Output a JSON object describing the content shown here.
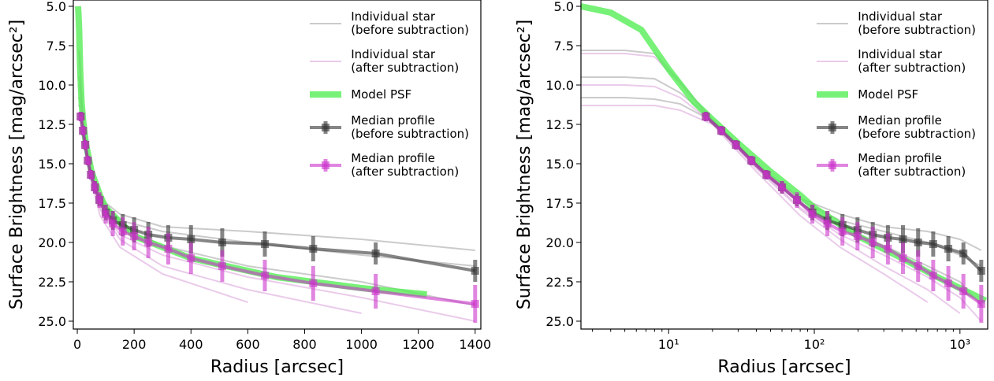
{
  "chart_data": [
    {
      "type": "line",
      "xlabel": "Radius [arcsec]",
      "ylabel": "Surface Brightness [mag/arcsec²]",
      "xlim": [
        -14,
        1420
      ],
      "ylim": [
        25.5,
        4.6
      ],
      "xticks": [
        0,
        200,
        400,
        600,
        800,
        1000,
        1200,
        1400
      ],
      "yticks": [
        {
          "value": 5,
          "label": "5.0"
        },
        7.5,
        {
          "value": 10,
          "label": "10.0"
        },
        12.5,
        {
          "value": 15,
          "label": "15.0"
        },
        17.5,
        {
          "value": 20,
          "label": "20.0"
        },
        22.5,
        {
          "value": 25,
          "label": "25.0"
        }
      ],
      "legend": "upper right",
      "series": [
        {
          "name": "Individual star\n(before subtraction)",
          "color": "#a0a0a0",
          "opacity": 0.55,
          "linewidth": 2,
          "x": [
            2.5,
            5,
            8,
            12,
            20,
            40,
            80,
            150,
            300,
            600,
            1000,
            1400
          ],
          "values": [
            7.8,
            7.8,
            8.0,
            9.8,
            12.2,
            15.0,
            17.3,
            18.6,
            19.3,
            20.0,
            20.8,
            21.5
          ]
        },
        {
          "color": "#a0a0a0",
          "opacity": 0.55,
          "linewidth": 2,
          "x": [
            2.5,
            5,
            8,
            12,
            20,
            40,
            80,
            150,
            300,
            600,
            1000,
            1400
          ],
          "values": [
            9.5,
            9.5,
            9.6,
            10.5,
            12.2,
            15.0,
            17.2,
            18.2,
            19.0,
            19.3,
            19.8,
            20.5
          ]
        },
        {
          "color": "#a0a0a0",
          "opacity": 0.55,
          "linewidth": 2,
          "x": [
            2.5,
            5,
            8,
            12,
            20,
            40,
            80,
            150,
            300,
            600,
            1000,
            1400
          ],
          "values": [
            10.8,
            10.8,
            10.9,
            11.2,
            12.3,
            15.1,
            17.5,
            19.0,
            20.2,
            21.5,
            22.5,
            24.0
          ]
        },
        {
          "name": "Individual star\n(after subtraction)",
          "color": "#d9a0d9",
          "opacity": 0.55,
          "linewidth": 2,
          "x": [
            2.5,
            5,
            8,
            12,
            20,
            40,
            80,
            150,
            300,
            600,
            1000,
            1400
          ],
          "values": [
            8.0,
            8.0,
            8.2,
            9.9,
            12.3,
            15.2,
            17.8,
            19.5,
            20.8,
            22.2,
            23.5,
            25.0
          ]
        },
        {
          "color": "#d9a0d9",
          "opacity": 0.55,
          "linewidth": 2,
          "x": [
            2.5,
            5,
            8,
            12,
            20,
            40,
            80,
            150,
            300,
            600,
            1000,
            1400
          ],
          "values": [
            10.0,
            10.0,
            10.1,
            10.8,
            12.4,
            15.3,
            17.9,
            19.8,
            21.5,
            23.0,
            24.5,
            null
          ]
        },
        {
          "color": "#d9a0d9",
          "opacity": 0.55,
          "linewidth": 2,
          "x": [
            2.5,
            5,
            8,
            12,
            20,
            40,
            80,
            150,
            300,
            600,
            1000,
            1400
          ],
          "values": [
            11.3,
            11.3,
            11.3,
            11.6,
            12.5,
            15.5,
            18.3,
            20.3,
            22.0,
            23.8,
            null,
            null
          ]
        },
        {
          "name": "Model PSF",
          "color": "#55ee55",
          "opacity": 0.8,
          "linewidth": 8,
          "x": [
            2.5,
            4,
            6.5,
            10,
            15,
            20,
            30,
            50,
            80,
            100,
            200,
            400,
            700,
            1000,
            1230
          ],
          "values": [
            5.0,
            5.4,
            6.5,
            9.0,
            11.1,
            12.2,
            13.7,
            15.5,
            17.0,
            17.8,
            19.6,
            21.0,
            22.2,
            22.9,
            23.3
          ]
        },
        {
          "name": "Median profile\n(before subtraction)",
          "color": "#333333",
          "opacity": 0.6,
          "linewidth": 4,
          "x": [
            12,
            20,
            28,
            37,
            48,
            62,
            78,
            100,
            125,
            160,
            200,
            250,
            320,
            400,
            510,
            660,
            830,
            1050,
            1400
          ],
          "values": [
            12.0,
            12.9,
            13.8,
            14.8,
            15.7,
            16.5,
            17.3,
            18.1,
            18.6,
            18.9,
            19.2,
            19.5,
            19.7,
            19.8,
            20.0,
            20.1,
            20.4,
            20.7,
            21.8
          ],
          "errors": [
            0.3,
            0.3,
            0.3,
            0.3,
            0.3,
            0.4,
            0.4,
            0.5,
            0.6,
            0.7,
            0.8,
            0.8,
            0.8,
            0.9,
            0.9,
            0.8,
            0.8,
            0.7,
            0.7
          ]
        },
        {
          "name": "Median profile\n(after subtraction)",
          "color": "#cc33cc",
          "opacity": 0.6,
          "linewidth": 4,
          "x": [
            12,
            20,
            28,
            37,
            48,
            62,
            78,
            100,
            125,
            160,
            200,
            250,
            320,
            400,
            510,
            660,
            830,
            1050,
            1400
          ],
          "values": [
            12.0,
            12.9,
            13.8,
            14.8,
            15.7,
            16.5,
            17.3,
            18.2,
            18.8,
            19.3,
            19.6,
            20.0,
            20.4,
            21.0,
            21.5,
            22.1,
            22.6,
            23.1,
            23.9
          ],
          "errors": [
            0.3,
            0.3,
            0.3,
            0.3,
            0.3,
            0.4,
            0.5,
            0.6,
            0.8,
            0.9,
            0.9,
            1.0,
            1.0,
            1.0,
            1.0,
            1.0,
            1.1,
            1.1,
            1.2
          ]
        }
      ]
    },
    {
      "type": "line",
      "xlabel": "Radius [arcsec]",
      "ylabel": "Surface Brightness [mag/arcsec²]",
      "xscale": "log",
      "xlim": [
        2.5,
        1550
      ],
      "ylim": [
        25.5,
        4.6
      ],
      "xticks": [
        {
          "value": 10,
          "label": "10¹"
        },
        {
          "value": 100,
          "label": "10²"
        },
        {
          "value": 1000,
          "label": "10³"
        }
      ],
      "yticks": [
        {
          "value": 5,
          "label": "5.0"
        },
        7.5,
        {
          "value": 10,
          "label": "10.0"
        },
        12.5,
        {
          "value": 15,
          "label": "15.0"
        },
        17.5,
        {
          "value": 20,
          "label": "20.0"
        },
        22.5,
        {
          "value": 25,
          "label": "25.0"
        }
      ],
      "legend": "upper right",
      "series": [
        {
          "name": "Individual star\n(before subtraction)",
          "color": "#a0a0a0",
          "opacity": 0.55,
          "linewidth": 2,
          "x": [
            2.5,
            5,
            8,
            12,
            20,
            40,
            80,
            150,
            300,
            600,
            1000,
            1400
          ],
          "values": [
            7.8,
            7.8,
            8.0,
            9.8,
            12.2,
            15.0,
            17.3,
            18.6,
            19.3,
            20.0,
            20.8,
            21.5
          ]
        },
        {
          "color": "#a0a0a0",
          "opacity": 0.55,
          "linewidth": 2,
          "x": [
            2.5,
            5,
            8,
            12,
            20,
            40,
            80,
            150,
            300,
            600,
            1000,
            1400
          ],
          "values": [
            9.5,
            9.5,
            9.6,
            10.5,
            12.2,
            15.0,
            17.2,
            18.2,
            19.0,
            19.3,
            19.8,
            20.5
          ]
        },
        {
          "color": "#a0a0a0",
          "opacity": 0.55,
          "linewidth": 2,
          "x": [
            2.5,
            5,
            8,
            12,
            20,
            40,
            80,
            150,
            300,
            600,
            1000,
            1400
          ],
          "values": [
            10.8,
            10.8,
            10.9,
            11.2,
            12.3,
            15.1,
            17.5,
            19.0,
            20.2,
            21.5,
            22.5,
            24.0
          ]
        },
        {
          "name": "Individual star\n(after subtraction)",
          "color": "#d9a0d9",
          "opacity": 0.55,
          "linewidth": 2,
          "x": [
            2.5,
            5,
            8,
            12,
            20,
            40,
            80,
            150,
            300,
            600,
            1000,
            1400
          ],
          "values": [
            8.0,
            8.0,
            8.2,
            9.9,
            12.3,
            15.2,
            17.8,
            19.5,
            20.8,
            22.2,
            23.5,
            25.0
          ]
        },
        {
          "color": "#d9a0d9",
          "opacity": 0.55,
          "linewidth": 2,
          "x": [
            2.5,
            5,
            8,
            12,
            20,
            40,
            80,
            150,
            300,
            600,
            1000,
            1400
          ],
          "values": [
            10.0,
            10.0,
            10.1,
            10.8,
            12.4,
            15.3,
            17.9,
            19.8,
            21.5,
            23.0,
            24.5,
            null
          ]
        },
        {
          "color": "#d9a0d9",
          "opacity": 0.55,
          "linewidth": 2,
          "x": [
            2.5,
            5,
            8,
            12,
            20,
            40,
            80,
            150,
            300,
            600,
            1000,
            1400
          ],
          "values": [
            11.3,
            11.3,
            11.3,
            11.6,
            12.5,
            15.5,
            18.3,
            20.3,
            22.0,
            23.8,
            null,
            null
          ]
        },
        {
          "name": "Model PSF",
          "color": "#55ee55",
          "opacity": 0.8,
          "linewidth": 8,
          "x": [
            2.5,
            4,
            6.5,
            10,
            15,
            20,
            30,
            50,
            80,
            100,
            200,
            400,
            700,
            1000,
            1500
          ],
          "values": [
            5.0,
            5.4,
            6.5,
            9.0,
            11.1,
            12.2,
            13.7,
            15.5,
            17.0,
            17.8,
            19.6,
            21.0,
            22.2,
            22.9,
            23.7
          ]
        },
        {
          "name": "Median profile\n(before subtraction)",
          "color": "#333333",
          "opacity": 0.6,
          "linewidth": 4,
          "x": [
            18,
            23,
            29,
            37,
            47,
            60,
            76,
            97,
            123,
            156,
            198,
            252,
            320,
            406,
            516,
            655,
            832,
            1056,
            1400
          ],
          "values": [
            12.0,
            12.9,
            13.8,
            14.8,
            15.7,
            16.5,
            17.3,
            18.1,
            18.6,
            18.9,
            19.2,
            19.5,
            19.7,
            19.8,
            20.0,
            20.1,
            20.4,
            20.7,
            21.8
          ],
          "errors": [
            0.3,
            0.3,
            0.3,
            0.3,
            0.3,
            0.4,
            0.4,
            0.5,
            0.6,
            0.7,
            0.8,
            0.8,
            0.8,
            0.9,
            0.9,
            0.8,
            0.8,
            0.7,
            0.7
          ]
        },
        {
          "name": "Median profile\n(after subtraction)",
          "color": "#cc33cc",
          "opacity": 0.6,
          "linewidth": 4,
          "x": [
            18,
            23,
            29,
            37,
            47,
            60,
            76,
            97,
            123,
            156,
            198,
            252,
            320,
            406,
            516,
            655,
            832,
            1056,
            1400
          ],
          "values": [
            12.0,
            12.9,
            13.8,
            14.8,
            15.7,
            16.5,
            17.3,
            18.2,
            18.8,
            19.3,
            19.6,
            20.0,
            20.4,
            21.0,
            21.5,
            22.1,
            22.6,
            23.1,
            23.9
          ],
          "errors": [
            0.3,
            0.3,
            0.3,
            0.3,
            0.3,
            0.4,
            0.5,
            0.6,
            0.8,
            0.9,
            0.9,
            1.0,
            1.0,
            1.0,
            1.0,
            1.0,
            1.1,
            1.1,
            1.2
          ]
        }
      ]
    }
  ]
}
